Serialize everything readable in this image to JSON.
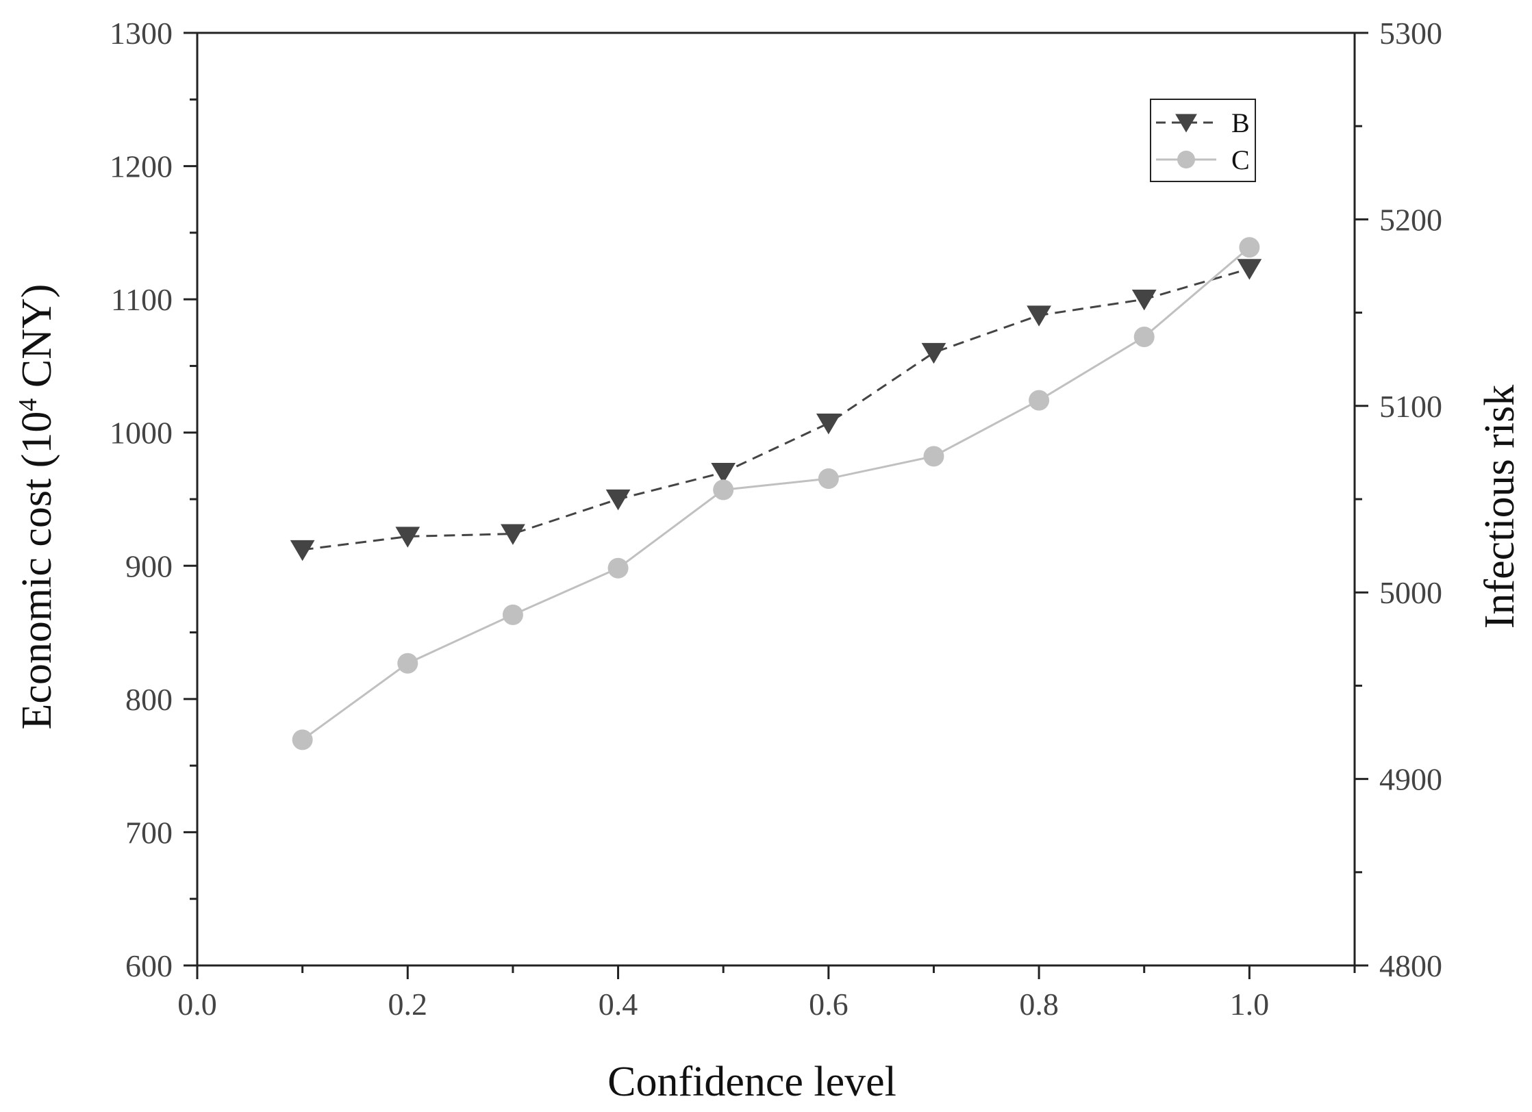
{
  "chart_data": {
    "type": "line",
    "xlabel": "Confidence level",
    "ylabel_left": {
      "prefix": "Economic cost (10",
      "sup": "4",
      "suffix": " CNY)"
    },
    "ylabel_right": "Infectious risk",
    "xlim": [
      0.0,
      1.1
    ],
    "ylim_left": [
      600,
      1300
    ],
    "ylim_right": [
      4800,
      5300
    ],
    "x_ticks": [
      "0.0",
      "0.2",
      "0.4",
      "0.6",
      "0.8",
      "1.0"
    ],
    "y_left_ticks": [
      "600",
      "700",
      "800",
      "900",
      "1000",
      "1100",
      "1200",
      "1300"
    ],
    "y_right_ticks": [
      "4800",
      "4900",
      "5000",
      "5100",
      "5200",
      "5300"
    ],
    "grid": false,
    "legend_position": "top-right",
    "x": [
      0.1,
      0.2,
      0.3,
      0.4,
      0.5,
      0.6,
      0.7,
      0.8,
      0.9,
      1.0
    ],
    "series": [
      {
        "name": "B",
        "axis": "left",
        "marker": "triangle-down",
        "line_style": "dashed",
        "color": "#444444",
        "values": [
          912,
          922,
          924,
          950,
          970,
          1007,
          1060,
          1088,
          1100,
          1123
        ]
      },
      {
        "name": "C",
        "axis": "right",
        "marker": "circle",
        "line_style": "solid",
        "color": "#c0c0c0",
        "values": [
          4921,
          4962,
          4988,
          5013,
          5055,
          5061,
          5073,
          5103,
          5137,
          5185
        ]
      }
    ]
  }
}
